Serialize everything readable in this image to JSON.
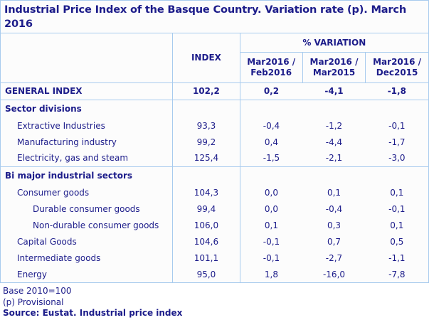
{
  "title": "Industrial Price Index of the Basque Country. Variation rate (p). March 2016",
  "chart_data": {
    "type": "table",
    "title": "Industrial Price Index of the Basque Country. Variation rate (p). March 2016",
    "column_headers": {
      "index": "INDEX",
      "variation_group": "% VARIATION",
      "variation_periods": [
        [
          "Mar2016 /",
          "Feb2016"
        ],
        [
          "Mar2016 /",
          "Mar2015"
        ],
        [
          "Mar2016 /",
          "Dec2015"
        ]
      ]
    },
    "rows": [
      [
        "GENERAL INDEX",
        "102,2",
        "0,2",
        "-4,1",
        "-1,8"
      ],
      [
        "Sector divisions",
        "",
        "",
        "",
        ""
      ],
      [
        "Extractive Industries",
        "93,3",
        "-0,4",
        "-1,2",
        "-0,1"
      ],
      [
        "Manufacturing industry",
        "99,2",
        "0,4",
        "-4,4",
        "-1,7"
      ],
      [
        "Electricity, gas and steam",
        "125,4",
        "-1,5",
        "-2,1",
        "-3,0"
      ],
      [
        "Bi major industrial sectors",
        "",
        "",
        "",
        ""
      ],
      [
        "Consumer goods",
        "104,3",
        "0,0",
        "0,1",
        "0,1"
      ],
      [
        "Durable consumer goods",
        "99,4",
        "0,0",
        "-0,4",
        "-0,1"
      ],
      [
        "Non-durable consumer goods",
        "106,0",
        "0,1",
        "0,3",
        "0,1"
      ],
      [
        "Capital Goods",
        "104,6",
        "-0,1",
        "0,7",
        "0,5"
      ],
      [
        "Intermediate goods",
        "101,1",
        "-0,1",
        "-2,7",
        "-1,1"
      ],
      [
        "Energy",
        "95,0",
        "1,8",
        "-16,0",
        "-7,8"
      ]
    ]
  },
  "footer": {
    "base": "Base 2010=100",
    "provisional": "(p) Provisional",
    "source": "Source: Eustat. Industrial price index"
  },
  "colors": {
    "text_navy": "#1c1c8a",
    "border_blue": "#a8cbee",
    "background": "#fcfcfc"
  }
}
